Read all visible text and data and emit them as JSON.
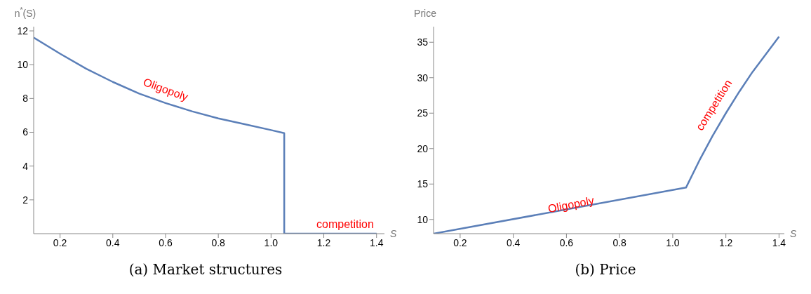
{
  "chart_data": [
    {
      "type": "line",
      "title": "(a) Market structures",
      "xlabel": "S",
      "ylabel": "n$^{*}$(S)",
      "series": [
        {
          "color": "#5b7fb8",
          "x": [
            0.1,
            0.2,
            0.3,
            0.4,
            0.5,
            0.6,
            0.7,
            0.8,
            0.9,
            1.0,
            1.05,
            1.05,
            1.4
          ],
          "values": [
            11.6,
            10.65,
            9.75,
            8.98,
            8.29,
            7.73,
            7.24,
            6.82,
            6.48,
            6.13,
            5.95,
            0,
            0
          ]
        }
      ],
      "xlim": [
        0.1,
        1.43
      ],
      "xticks": [
        0.2,
        0.4,
        0.6,
        0.8,
        {
          "value": 1,
          "label": "1.0"
        },
        1.2,
        1.4
      ],
      "ylim": [
        0,
        12.25
      ],
      "yticks": [
        2,
        4,
        6,
        8,
        10,
        12
      ],
      "annotations": [
        "Oligopoly",
        "competition"
      ],
      "grid": false,
      "legend": false,
      "marker": "none",
      "line_style": "solid"
    },
    {
      "type": "line",
      "title": "(b) Price",
      "xlabel": "S",
      "ylabel": "Price",
      "series": [
        {
          "color": "#5b7fb8",
          "x": [
            0.1,
            1.05,
            1.1,
            1.15,
            1.2,
            1.25,
            1.3,
            1.35,
            1.4
          ],
          "values": [
            8.0,
            14.5,
            18.3,
            21.8,
            25.0,
            28.0,
            30.8,
            33.3,
            35.8
          ]
        }
      ],
      "xlim": [
        0.1,
        1.42
      ],
      "xticks": [
        0.2,
        0.4,
        0.6,
        0.8,
        {
          "value": 1,
          "label": "1.0"
        },
        1.2,
        1.4
      ],
      "ylim": [
        8,
        37.2
      ],
      "yticks": [
        10,
        15,
        20,
        25,
        30,
        35
      ],
      "annotations": [
        "Oligopoly",
        "competition"
      ],
      "grid": false,
      "legend": false,
      "marker": "none",
      "line_style": "solid"
    }
  ]
}
